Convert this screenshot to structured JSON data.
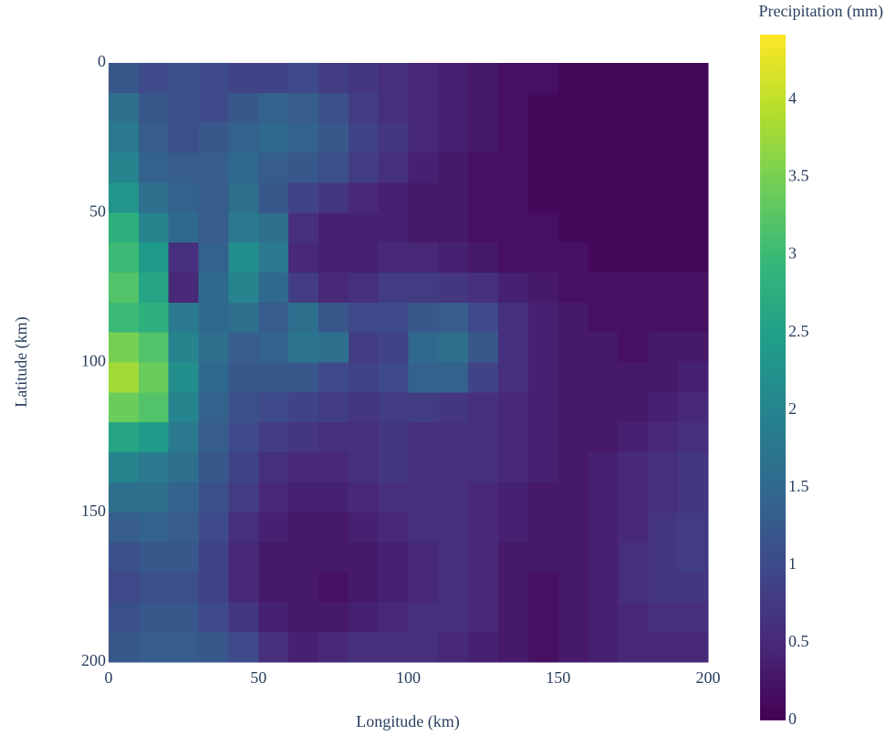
{
  "chart_data": {
    "type": "heatmap",
    "xaxis_title": "Longitude (km)",
    "yaxis_title": "Latitude (km)",
    "colorbar_title": "Precipitation (mm)",
    "x": [
      5,
      15,
      25,
      35,
      45,
      55,
      65,
      75,
      85,
      95,
      105,
      115,
      125,
      135,
      145,
      155,
      165,
      175,
      185,
      195
    ],
    "y": [
      5,
      15,
      25,
      35,
      45,
      55,
      65,
      75,
      85,
      95,
      105,
      115,
      125,
      135,
      145,
      155,
      165,
      175,
      185,
      195
    ],
    "z": [
      [
        1.2,
        1.0,
        1.1,
        1.0,
        0.9,
        0.9,
        1.0,
        0.8,
        0.7,
        0.6,
        0.5,
        0.4,
        0.3,
        0.2,
        0.2,
        0.1,
        0.1,
        0.1,
        0.1,
        0.1
      ],
      [
        1.6,
        1.2,
        1.1,
        1.0,
        1.2,
        1.4,
        1.3,
        1.1,
        0.8,
        0.6,
        0.5,
        0.4,
        0.3,
        0.2,
        0.1,
        0.1,
        0.1,
        0.1,
        0.1,
        0.1
      ],
      [
        1.8,
        1.3,
        1.1,
        1.2,
        1.4,
        1.5,
        1.4,
        1.2,
        0.9,
        0.7,
        0.5,
        0.4,
        0.3,
        0.2,
        0.1,
        0.1,
        0.1,
        0.1,
        0.1,
        0.1
      ],
      [
        2.0,
        1.4,
        1.3,
        1.3,
        1.5,
        1.3,
        1.2,
        1.1,
        0.8,
        0.6,
        0.4,
        0.3,
        0.2,
        0.2,
        0.1,
        0.1,
        0.1,
        0.1,
        0.1,
        0.1
      ],
      [
        2.3,
        1.6,
        1.4,
        1.3,
        1.6,
        1.2,
        0.9,
        0.7,
        0.5,
        0.4,
        0.3,
        0.3,
        0.2,
        0.2,
        0.1,
        0.1,
        0.1,
        0.1,
        0.1,
        0.1
      ],
      [
        2.8,
        2.0,
        1.5,
        1.3,
        1.8,
        1.6,
        0.6,
        0.4,
        0.4,
        0.4,
        0.3,
        0.3,
        0.2,
        0.2,
        0.2,
        0.1,
        0.1,
        0.1,
        0.1,
        0.1
      ],
      [
        3.0,
        2.4,
        0.6,
        1.4,
        2.2,
        1.8,
        0.5,
        0.4,
        0.4,
        0.5,
        0.5,
        0.4,
        0.3,
        0.2,
        0.2,
        0.2,
        0.1,
        0.1,
        0.1,
        0.1
      ],
      [
        3.2,
        2.6,
        0.5,
        1.5,
        2.0,
        1.5,
        0.8,
        0.5,
        0.6,
        0.8,
        0.8,
        0.7,
        0.6,
        0.4,
        0.3,
        0.2,
        0.2,
        0.2,
        0.2,
        0.2
      ],
      [
        3.0,
        2.8,
        1.8,
        1.5,
        1.6,
        1.3,
        1.6,
        1.2,
        1.0,
        1.0,
        1.2,
        1.3,
        1.0,
        0.6,
        0.4,
        0.3,
        0.2,
        0.2,
        0.2,
        0.2
      ],
      [
        3.5,
        3.2,
        2.0,
        1.6,
        1.3,
        1.4,
        1.7,
        1.6,
        0.8,
        0.9,
        1.5,
        1.6,
        1.2,
        0.6,
        0.4,
        0.3,
        0.3,
        0.2,
        0.3,
        0.3
      ],
      [
        3.8,
        3.4,
        2.2,
        1.5,
        1.2,
        1.2,
        1.2,
        1.0,
        0.9,
        1.0,
        1.4,
        1.4,
        0.9,
        0.6,
        0.4,
        0.3,
        0.3,
        0.3,
        0.3,
        0.4
      ],
      [
        3.4,
        3.2,
        2.0,
        1.4,
        1.1,
        1.0,
        0.9,
        0.8,
        0.7,
        0.8,
        0.8,
        0.7,
        0.6,
        0.5,
        0.4,
        0.3,
        0.3,
        0.3,
        0.4,
        0.5
      ],
      [
        2.6,
        2.4,
        1.8,
        1.3,
        1.0,
        0.8,
        0.7,
        0.6,
        0.6,
        0.7,
        0.6,
        0.6,
        0.6,
        0.5,
        0.4,
        0.3,
        0.3,
        0.4,
        0.5,
        0.6
      ],
      [
        2.0,
        1.8,
        1.6,
        1.2,
        0.9,
        0.6,
        0.5,
        0.5,
        0.6,
        0.7,
        0.6,
        0.6,
        0.6,
        0.5,
        0.4,
        0.3,
        0.4,
        0.5,
        0.6,
        0.7
      ],
      [
        1.6,
        1.6,
        1.4,
        1.1,
        0.8,
        0.5,
        0.4,
        0.4,
        0.5,
        0.6,
        0.6,
        0.6,
        0.5,
        0.4,
        0.3,
        0.3,
        0.4,
        0.5,
        0.6,
        0.7
      ],
      [
        1.3,
        1.4,
        1.3,
        1.0,
        0.6,
        0.4,
        0.3,
        0.3,
        0.4,
        0.5,
        0.6,
        0.6,
        0.5,
        0.4,
        0.3,
        0.3,
        0.4,
        0.5,
        0.7,
        0.8
      ],
      [
        1.1,
        1.2,
        1.2,
        0.9,
        0.5,
        0.3,
        0.3,
        0.3,
        0.3,
        0.4,
        0.5,
        0.6,
        0.5,
        0.3,
        0.3,
        0.3,
        0.4,
        0.6,
        0.7,
        0.8
      ],
      [
        1.0,
        1.1,
        1.1,
        0.9,
        0.5,
        0.3,
        0.3,
        0.2,
        0.3,
        0.4,
        0.5,
        0.6,
        0.5,
        0.3,
        0.2,
        0.3,
        0.4,
        0.6,
        0.7,
        0.7
      ],
      [
        1.1,
        1.2,
        1.2,
        1.0,
        0.7,
        0.4,
        0.3,
        0.3,
        0.4,
        0.5,
        0.6,
        0.6,
        0.5,
        0.3,
        0.2,
        0.3,
        0.4,
        0.5,
        0.6,
        0.6
      ],
      [
        1.2,
        1.3,
        1.3,
        1.2,
        1.0,
        0.6,
        0.4,
        0.5,
        0.6,
        0.6,
        0.6,
        0.5,
        0.4,
        0.3,
        0.2,
        0.3,
        0.4,
        0.5,
        0.5,
        0.5
      ]
    ],
    "xlim": [
      0,
      200
    ],
    "xticks": [
      0,
      50,
      100,
      150,
      200
    ],
    "ylim": [
      0,
      200
    ],
    "yticks": [
      0,
      50,
      100,
      150,
      200
    ],
    "yaxis_reversed": true,
    "zlim": [
      0,
      4.42
    ],
    "zticks": [
      0,
      0.5,
      1,
      1.5,
      2,
      2.5,
      3,
      3.5,
      4
    ],
    "colorscale": [
      "#440154",
      "#482878",
      "#3e4989",
      "#31688e",
      "#26828e",
      "#1f9e89",
      "#35b779",
      "#6ece58",
      "#b5de2b",
      "#fde725"
    ]
  }
}
